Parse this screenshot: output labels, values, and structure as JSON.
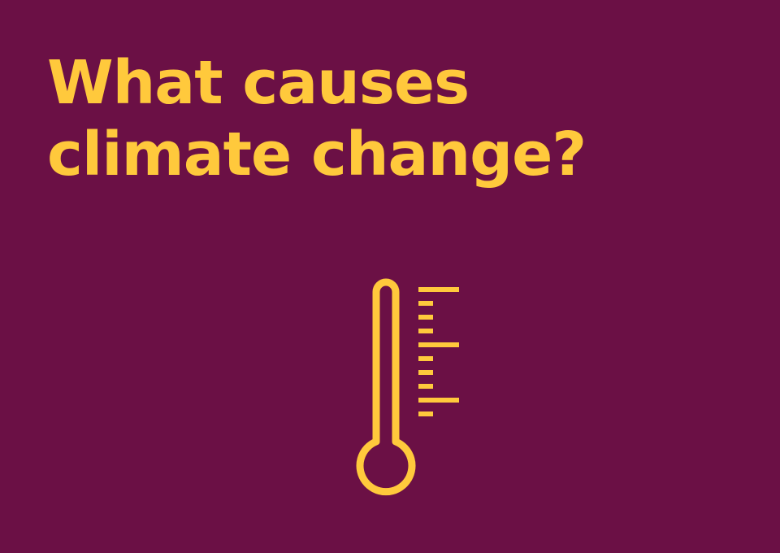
{
  "slide": {
    "title_line_1": "What causes",
    "title_line_2": "climate change?"
  },
  "icon": {
    "name": "thermometer-icon",
    "color": "#ffc93c"
  },
  "colors": {
    "background": "#6b1045",
    "accent": "#ffc93c"
  }
}
